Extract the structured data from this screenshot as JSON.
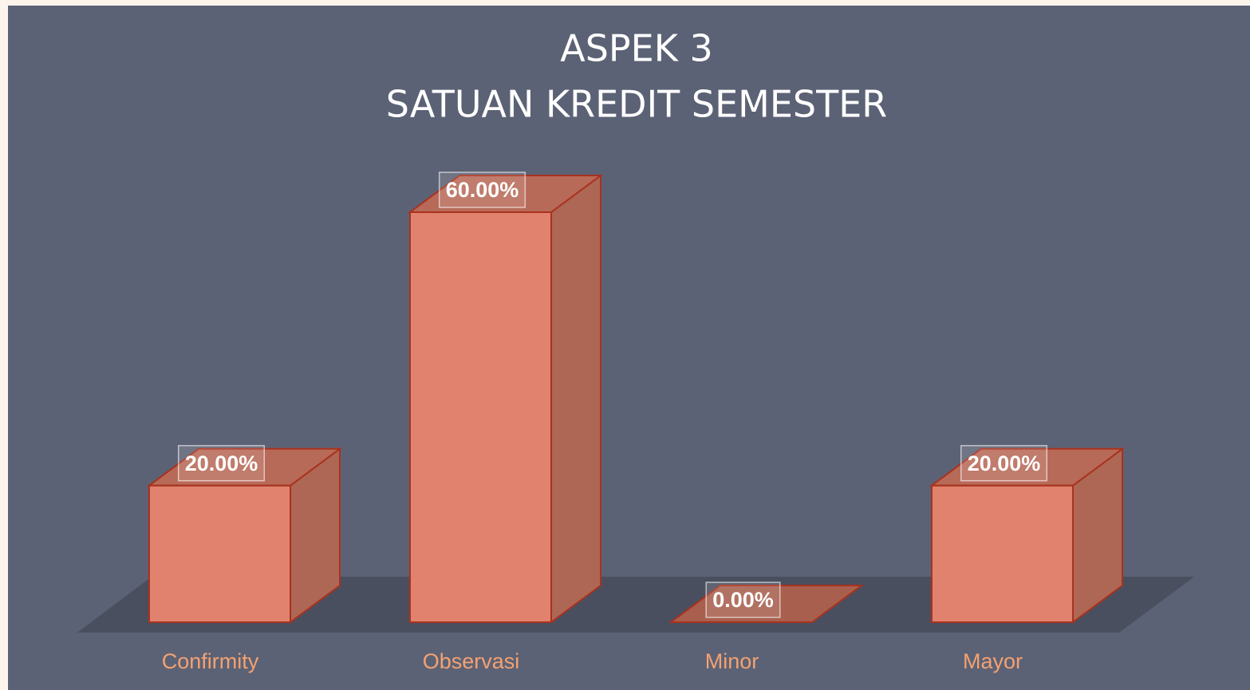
{
  "chart_data": {
    "type": "bar3d",
    "title": "ASPEK 3",
    "subtitle": "SATUAN KREDIT SEMESTER",
    "categories": [
      "Confirmity",
      "Observasi",
      "Minor",
      "Mayor"
    ],
    "values": [
      20,
      60,
      0,
      20
    ],
    "value_labels": [
      "20.00%",
      "60.00%",
      "0.00%",
      "20.00%"
    ],
    "color": "#e0826e"
  }
}
